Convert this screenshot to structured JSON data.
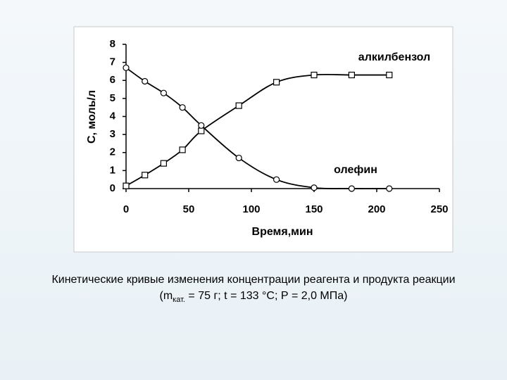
{
  "chart_data": {
    "type": "line",
    "x": [
      0,
      15,
      30,
      45,
      60,
      90,
      120,
      150,
      180,
      210
    ],
    "series": [
      {
        "name": "алкилбензол",
        "color": "#000000",
        "marker": "square",
        "values": [
          0.15,
          0.75,
          1.4,
          2.15,
          3.2,
          4.6,
          5.9,
          6.3,
          6.3,
          6.3
        ]
      },
      {
        "name": "олефин",
        "color": "#000000",
        "marker": "circle",
        "values": [
          6.7,
          5.95,
          5.3,
          4.5,
          3.5,
          1.7,
          0.5,
          0.05,
          0,
          0
        ]
      }
    ],
    "xlabel": "Время,мин",
    "ylabel": "С, моль/л",
    "xlim": [
      0,
      250
    ],
    "xticks": [
      0,
      50,
      100,
      150,
      200,
      250
    ],
    "ylim": [
      0,
      8
    ],
    "yticks": [
      0,
      1,
      2,
      3,
      4,
      5,
      6,
      7,
      8
    ],
    "grid": false,
    "smooth": true
  },
  "caption": {
    "line1": "Кинетические кривые изменения концентрации реагента и продукта реакции",
    "line2": {
      "start": "(m",
      "subscript": "кат.",
      "end": " = 75 г; t = 133 °С; Р = 2,0 МПа)"
    }
  }
}
